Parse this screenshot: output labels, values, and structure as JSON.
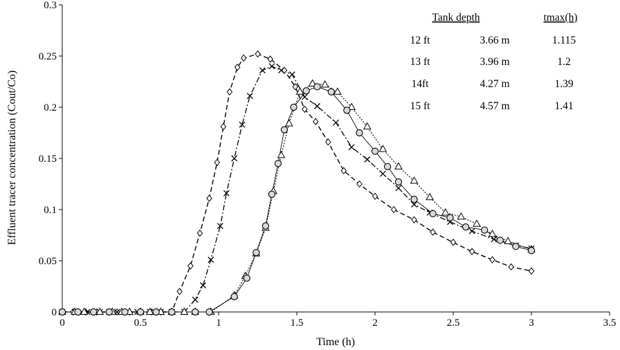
{
  "chart_data": {
    "type": "scatter",
    "xlabel": "Time (h)",
    "ylabel": "Effluent tracer concentration (Cout/Co)",
    "xlim": [
      0,
      3.5
    ],
    "ylim": [
      0,
      0.3
    ],
    "x_ticks": [
      "0",
      "0.5",
      "1",
      "1.5",
      "2",
      "2.5",
      "3",
      "3.5"
    ],
    "y_ticks": [
      "0",
      "0.05",
      "0.1",
      "0.15",
      "0.2",
      "0.25",
      "0.3"
    ],
    "grid": false,
    "legend": "none",
    "series": [
      {
        "marker": "diamond",
        "line": "dashed",
        "x": [
          0,
          0.07,
          0.15,
          0.22,
          0.3,
          0.35,
          0.43,
          0.5,
          0.57,
          0.63,
          0.7,
          0.75,
          0.82,
          0.88,
          0.94,
          0.99,
          1.03,
          1.07,
          1.12,
          1.16,
          1.25,
          1.33,
          1.42,
          1.49,
          1.55,
          1.62,
          1.7,
          1.8,
          1.9,
          2.0,
          2.12,
          2.25,
          2.37,
          2.5,
          2.62,
          2.75,
          2.87,
          3.0
        ],
        "y": [
          0,
          0,
          0,
          0,
          0,
          0,
          0,
          0,
          0,
          0,
          0,
          0.02,
          0.045,
          0.077,
          0.111,
          0.146,
          0.181,
          0.215,
          0.239,
          0.248,
          0.252,
          0.247,
          0.236,
          0.22,
          0.198,
          0.186,
          0.166,
          0.138,
          0.125,
          0.113,
          0.1,
          0.09,
          0.078,
          0.068,
          0.059,
          0.051,
          0.044,
          0.04
        ]
      },
      {
        "marker": "x",
        "line": "dash-dot",
        "x": [
          0,
          0.08,
          0.16,
          0.24,
          0.3,
          0.35,
          0.42,
          0.48,
          0.56,
          0.63,
          0.7,
          0.78,
          0.85,
          0.9,
          0.95,
          1.01,
          1.05,
          1.1,
          1.15,
          1.2,
          1.28,
          1.34,
          1.4,
          1.47,
          1.55,
          1.63,
          1.75,
          1.85,
          1.95,
          2.05,
          2.15,
          2.25,
          2.35,
          2.48,
          2.62,
          2.76,
          2.9,
          3.0
        ],
        "y": [
          0,
          0,
          0,
          0,
          0,
          0,
          0,
          0,
          0,
          0,
          0,
          0,
          0.012,
          0.026,
          0.051,
          0.084,
          0.116,
          0.15,
          0.183,
          0.211,
          0.236,
          0.24,
          0.236,
          0.232,
          0.21,
          0.201,
          0.185,
          0.161,
          0.149,
          0.135,
          0.121,
          0.105,
          0.097,
          0.088,
          0.079,
          0.071,
          0.065,
          0.062
        ]
      },
      {
        "marker": "triangle",
        "line": "dotted",
        "x": [
          0,
          0.08,
          0.14,
          0.24,
          0.32,
          0.38,
          0.43,
          0.5,
          0.56,
          0.63,
          0.7,
          0.78,
          0.85,
          0.95,
          1.1,
          1.17,
          1.24,
          1.3,
          1.35,
          1.4,
          1.45,
          1.52,
          1.6,
          1.68,
          1.76,
          1.85,
          1.95,
          2.05,
          2.15,
          2.25,
          2.35,
          2.45,
          2.55,
          2.65,
          2.75,
          2.85,
          3.0
        ],
        "y": [
          0,
          0,
          0,
          0,
          0,
          0,
          0,
          0,
          0,
          0,
          0,
          0,
          0,
          0,
          0.016,
          0.035,
          0.057,
          0.082,
          0.118,
          0.153,
          0.184,
          0.215,
          0.223,
          0.222,
          0.215,
          0.2,
          0.181,
          0.159,
          0.142,
          0.128,
          0.112,
          0.097,
          0.093,
          0.086,
          0.076,
          0.069,
          0.061
        ]
      },
      {
        "marker": "circle-filled",
        "line": "solid",
        "x": [
          0,
          0.1,
          0.2,
          0.3,
          0.4,
          0.5,
          0.6,
          0.7,
          0.85,
          0.94,
          1.1,
          1.18,
          1.24,
          1.3,
          1.34,
          1.38,
          1.42,
          1.48,
          1.56,
          1.63,
          1.72,
          1.82,
          1.9,
          2.0,
          2.08,
          2.15,
          2.25,
          2.37,
          2.48,
          2.58,
          2.7,
          2.8,
          2.9,
          3.0
        ],
        "y": [
          0,
          0,
          0,
          0,
          0,
          0,
          0,
          0,
          0,
          0,
          0.015,
          0.033,
          0.058,
          0.084,
          0.115,
          0.145,
          0.178,
          0.2,
          0.216,
          0.22,
          0.215,
          0.197,
          0.175,
          0.157,
          0.142,
          0.127,
          0.11,
          0.096,
          0.092,
          0.083,
          0.08,
          0.07,
          0.064,
          0.06
        ]
      }
    ],
    "table": {
      "headers": [
        "Tank depth",
        "tmax(h)"
      ],
      "rows": [
        [
          "12 ft",
          "3.66 m",
          "1.115"
        ],
        [
          "13 ft",
          "3.96 m",
          "1.2"
        ],
        [
          "14ft",
          "4.27 m",
          "1.39"
        ],
        [
          "15 ft",
          "4.57 m",
          "1.41"
        ]
      ]
    }
  }
}
